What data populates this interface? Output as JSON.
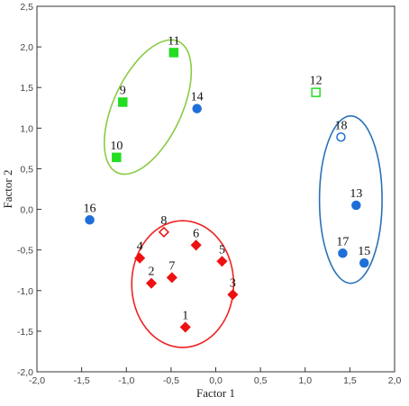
{
  "chart_data": {
    "type": "scatter",
    "xlabel": "Factor 1",
    "ylabel": "Factor 2",
    "xlim": [
      -2.0,
      2.0
    ],
    "ylim": [
      -2.0,
      2.5
    ],
    "xticks": [
      "-2,0",
      "-1,5",
      "-1,0",
      "-0,5",
      "0,0",
      "0,5",
      "1,0",
      "1,5",
      "2,0"
    ],
    "yticks": [
      "-2,0",
      "-1,5",
      "-1,0",
      "-0,5",
      "0,0",
      "0,5",
      "1,0",
      "1,5",
      "2,0",
      "2,5"
    ],
    "grid": false,
    "colors": {
      "green": "#22dd22",
      "blue": "#1f6fd8",
      "red": "#ee1111",
      "green_ellipse": "#88cc44",
      "blue_ellipse": "#2a72b8",
      "red_ellipse": "#ee2222"
    },
    "points": [
      {
        "label": "1",
        "x": -0.34,
        "y": -1.45,
        "marker": "diamond",
        "filled": true,
        "color": "red"
      },
      {
        "label": "2",
        "x": -0.72,
        "y": -0.91,
        "marker": "diamond",
        "filled": true,
        "color": "red"
      },
      {
        "label": "3",
        "x": 0.19,
        "y": -1.05,
        "marker": "diamond",
        "filled": true,
        "color": "red"
      },
      {
        "label": "4",
        "x": -0.85,
        "y": -0.6,
        "marker": "diamond",
        "filled": true,
        "color": "red"
      },
      {
        "label": "5",
        "x": 0.07,
        "y": -0.64,
        "marker": "diamond",
        "filled": true,
        "color": "red"
      },
      {
        "label": "6",
        "x": -0.22,
        "y": -0.44,
        "marker": "diamond",
        "filled": true,
        "color": "red"
      },
      {
        "label": "7",
        "x": -0.49,
        "y": -0.84,
        "marker": "diamond",
        "filled": true,
        "color": "red"
      },
      {
        "label": "8",
        "x": -0.58,
        "y": -0.28,
        "marker": "diamond",
        "filled": false,
        "color": "red"
      },
      {
        "label": "9",
        "x": -1.04,
        "y": 1.32,
        "marker": "square",
        "filled": true,
        "color": "green"
      },
      {
        "label": "10",
        "x": -1.11,
        "y": 0.64,
        "marker": "square",
        "filled": true,
        "color": "green"
      },
      {
        "label": "11",
        "x": -0.47,
        "y": 1.93,
        "marker": "square",
        "filled": true,
        "color": "green"
      },
      {
        "label": "12",
        "x": 1.12,
        "y": 1.44,
        "marker": "square",
        "filled": false,
        "color": "green"
      },
      {
        "label": "13",
        "x": 1.57,
        "y": 0.05,
        "marker": "circle",
        "filled": true,
        "color": "blue"
      },
      {
        "label": "14",
        "x": -0.21,
        "y": 1.24,
        "marker": "circle",
        "filled": true,
        "color": "blue"
      },
      {
        "label": "15",
        "x": 1.66,
        "y": -0.66,
        "marker": "circle",
        "filled": true,
        "color": "blue"
      },
      {
        "label": "16",
        "x": -1.41,
        "y": -0.13,
        "marker": "circle",
        "filled": true,
        "color": "blue"
      },
      {
        "label": "17",
        "x": 1.42,
        "y": -0.54,
        "marker": "circle",
        "filled": true,
        "color": "blue"
      },
      {
        "label": "18",
        "x": 1.4,
        "y": 0.89,
        "marker": "circle",
        "filled": false,
        "color": "blue"
      }
    ],
    "ellipses": [
      {
        "color": "green_ellipse",
        "cx": -0.76,
        "cy": 1.26,
        "rx": 0.81,
        "ry": 0.42,
        "angle_deg": 65
      },
      {
        "color": "blue_ellipse",
        "cx": 1.51,
        "cy": 0.12,
        "rx": 0.35,
        "ry": 1.03,
        "angle_deg": 0
      },
      {
        "color": "red_ellipse",
        "cx": -0.37,
        "cy": -0.92,
        "rx": 0.57,
        "ry": 0.78,
        "angle_deg": 0
      }
    ],
    "label_positions": {
      "1": "above",
      "2": "above",
      "3": "above",
      "4": "above",
      "5": "above",
      "6": "above",
      "7": "above",
      "8": "above",
      "9": "above",
      "10": "above",
      "11": "above",
      "12": "above",
      "13": "above",
      "14": "above",
      "15": "above",
      "16": "above",
      "17": "above",
      "18": "above"
    }
  }
}
